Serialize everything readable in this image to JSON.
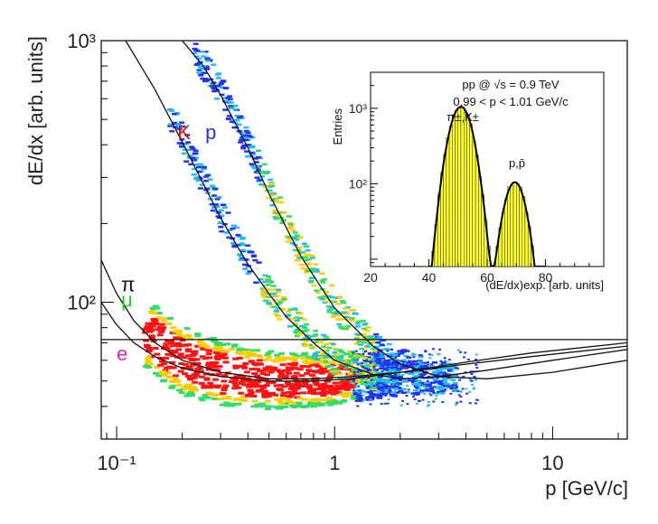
{
  "chart_data": {
    "type": "scatter",
    "title": "",
    "xlabel": "p [GeV/c]",
    "ylabel": "dE/dx [arb. units]",
    "xscale": "log",
    "yscale": "log",
    "xlim": [
      0.085,
      22
    ],
    "ylim": [
      30,
      1000
    ],
    "x_ticks": [
      {
        "value": 0.1,
        "label": "10⁻¹"
      },
      {
        "value": 1,
        "label": "1"
      },
      {
        "value": 10,
        "label": "10"
      }
    ],
    "y_ticks": [
      {
        "value": 100,
        "label": "10²"
      },
      {
        "value": 1000,
        "label": "10³"
      }
    ],
    "particle_labels": [
      {
        "text": "K",
        "color": "#e01010",
        "x": 0.19,
        "y": 420
      },
      {
        "text": "p",
        "color": "#2233cc",
        "x": 0.255,
        "y": 420
      },
      {
        "text": "π",
        "color": "#111111",
        "x": 0.105,
        "y": 110
      },
      {
        "text": "μ",
        "color": "#22cc22",
        "x": 0.105,
        "y": 96
      },
      {
        "text": "e",
        "color": "#dd22cc",
        "x": 0.1,
        "y": 60
      }
    ],
    "series": [
      {
        "name": "e",
        "color": "#111111",
        "points": [
          [
            0.085,
            72
          ],
          [
            22,
            72
          ]
        ]
      },
      {
        "name": "μ",
        "color": "#111111",
        "points": [
          [
            0.085,
            100
          ],
          [
            0.1,
            82
          ],
          [
            0.12,
            70
          ],
          [
            0.15,
            62
          ],
          [
            0.2,
            56
          ],
          [
            0.3,
            52
          ],
          [
            0.5,
            50
          ],
          [
            0.8,
            50
          ],
          [
            1.2,
            51
          ],
          [
            2,
            54
          ],
          [
            4,
            59
          ],
          [
            8,
            64
          ],
          [
            22,
            70
          ]
        ]
      },
      {
        "name": "π",
        "color": "#111111",
        "points": [
          [
            0.085,
            145
          ],
          [
            0.1,
            108
          ],
          [
            0.12,
            85
          ],
          [
            0.15,
            70
          ],
          [
            0.2,
            60
          ],
          [
            0.3,
            54
          ],
          [
            0.5,
            51
          ],
          [
            0.8,
            51
          ],
          [
            1.2,
            52
          ],
          [
            2,
            54
          ],
          [
            4,
            58
          ],
          [
            8,
            62
          ],
          [
            22,
            68
          ]
        ]
      },
      {
        "name": "K",
        "color": "#111111",
        "points": [
          [
            0.11,
            1000
          ],
          [
            0.15,
            650
          ],
          [
            0.2,
            410
          ],
          [
            0.3,
            210
          ],
          [
            0.4,
            140
          ],
          [
            0.5,
            108
          ],
          [
            0.6,
            88
          ],
          [
            0.8,
            70
          ],
          [
            1,
            60
          ],
          [
            1.5,
            53
          ],
          [
            2,
            51
          ],
          [
            3,
            52
          ],
          [
            5,
            55
          ],
          [
            10,
            60
          ],
          [
            22,
            66
          ]
        ]
      },
      {
        "name": "p",
        "color": "#111111",
        "points": [
          [
            0.2,
            1000
          ],
          [
            0.25,
            800
          ],
          [
            0.3,
            620
          ],
          [
            0.4,
            390
          ],
          [
            0.5,
            260
          ],
          [
            0.7,
            150
          ],
          [
            1,
            95
          ],
          [
            1.5,
            68
          ],
          [
            2,
            58
          ],
          [
            3,
            52
          ],
          [
            5,
            51
          ],
          [
            10,
            54
          ],
          [
            22,
            60
          ]
        ]
      }
    ],
    "inset": {
      "type": "histogram",
      "text_lines": [
        "pp @ √s = 0.9 TeV",
        "0.99 < p < 1.01 GeV/c"
      ],
      "ylabel": "Entries",
      "xlabel": "(dE/dx)exp. [arb. units]",
      "xlim": [
        20,
        100
      ],
      "ylim": [
        8,
        3000
      ],
      "yscale": "log",
      "x_ticks": [
        20,
        40,
        60,
        80
      ],
      "y_ticks": [
        {
          "value": 1000,
          "label": "10³"
        },
        {
          "value": 100,
          "label": "10²"
        }
      ],
      "peaks": [
        {
          "label": "π±,K±",
          "mean": 51,
          "sigma": 3.2,
          "amplitude": 1050
        },
        {
          "label": "p,p̄",
          "mean": 69.5,
          "sigma": 3.0,
          "amplitude": 105
        }
      ],
      "fill_color": "#ffff33"
    }
  }
}
